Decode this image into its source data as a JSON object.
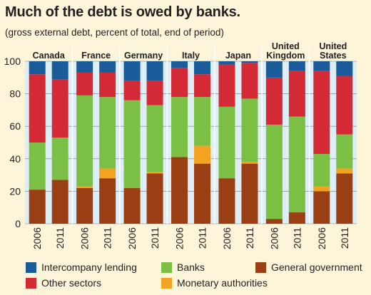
{
  "title": "Much of the debt is owed by banks.",
  "subtitle": "(gross external debt, percent of total, end of period)",
  "colors": {
    "intercompany": "#1a5c99",
    "other": "#d42a36",
    "banks": "#7bbf45",
    "monetary": "#f4a320",
    "government": "#9a3f13",
    "background": "#fdf5d9",
    "panel": "#ddeef7"
  },
  "chart_data": {
    "type": "bar",
    "stacked": true,
    "title": "Much of the debt is owed by banks.",
    "subtitle": "(gross external debt, percent of total, end of period)",
    "ylim": [
      0,
      100
    ],
    "yticks": [
      0,
      20,
      40,
      60,
      80,
      100
    ],
    "groups": [
      "Canada",
      "France",
      "Germany",
      "Italy",
      "Japan",
      "United Kingdom",
      "United States"
    ],
    "group_labels": [
      [
        "Canada"
      ],
      [
        "France"
      ],
      [
        "Germany"
      ],
      [
        "Italy"
      ],
      [
        "Japan"
      ],
      [
        "United",
        "Kingdom"
      ],
      [
        "United",
        "States"
      ]
    ],
    "categories": [
      "2006",
      "2011",
      "2006",
      "2011",
      "2006",
      "2011",
      "2006",
      "2011",
      "2006",
      "2011",
      "2006",
      "2011",
      "2006",
      "2011"
    ],
    "series": [
      {
        "name": "General government",
        "key": "government",
        "values": [
          21,
          27,
          22,
          28,
          22,
          31,
          41,
          37,
          28,
          37,
          3,
          7,
          20,
          31
        ]
      },
      {
        "name": "Monetary authorities",
        "key": "monetary",
        "values": [
          0,
          0,
          1,
          6,
          0,
          1,
          0,
          11,
          0,
          1,
          0,
          0,
          3,
          3
        ]
      },
      {
        "name": "Banks",
        "key": "banks",
        "values": [
          29,
          26,
          56,
          44,
          54,
          41,
          37,
          30,
          44,
          39,
          58,
          59,
          20,
          21
        ]
      },
      {
        "name": "Other sectors",
        "key": "other",
        "values": [
          42,
          36,
          14,
          15,
          12,
          15,
          18,
          14,
          26,
          22,
          29,
          28,
          51,
          36
        ]
      },
      {
        "name": "Intercompany lending",
        "key": "intercompany",
        "values": [
          8,
          11,
          7,
          7,
          12,
          12,
          4,
          8,
          2,
          1,
          10,
          6,
          6,
          9
        ]
      }
    ],
    "grid": true,
    "legend_position": "bottom"
  },
  "legend": [
    {
      "label": "Intercompany lending",
      "key": "intercompany"
    },
    {
      "label": "Banks",
      "key": "banks"
    },
    {
      "label": "General government",
      "key": "government"
    },
    {
      "label": "Other sectors",
      "key": "other"
    },
    {
      "label": "Monetary authorities",
      "key": "monetary"
    }
  ]
}
